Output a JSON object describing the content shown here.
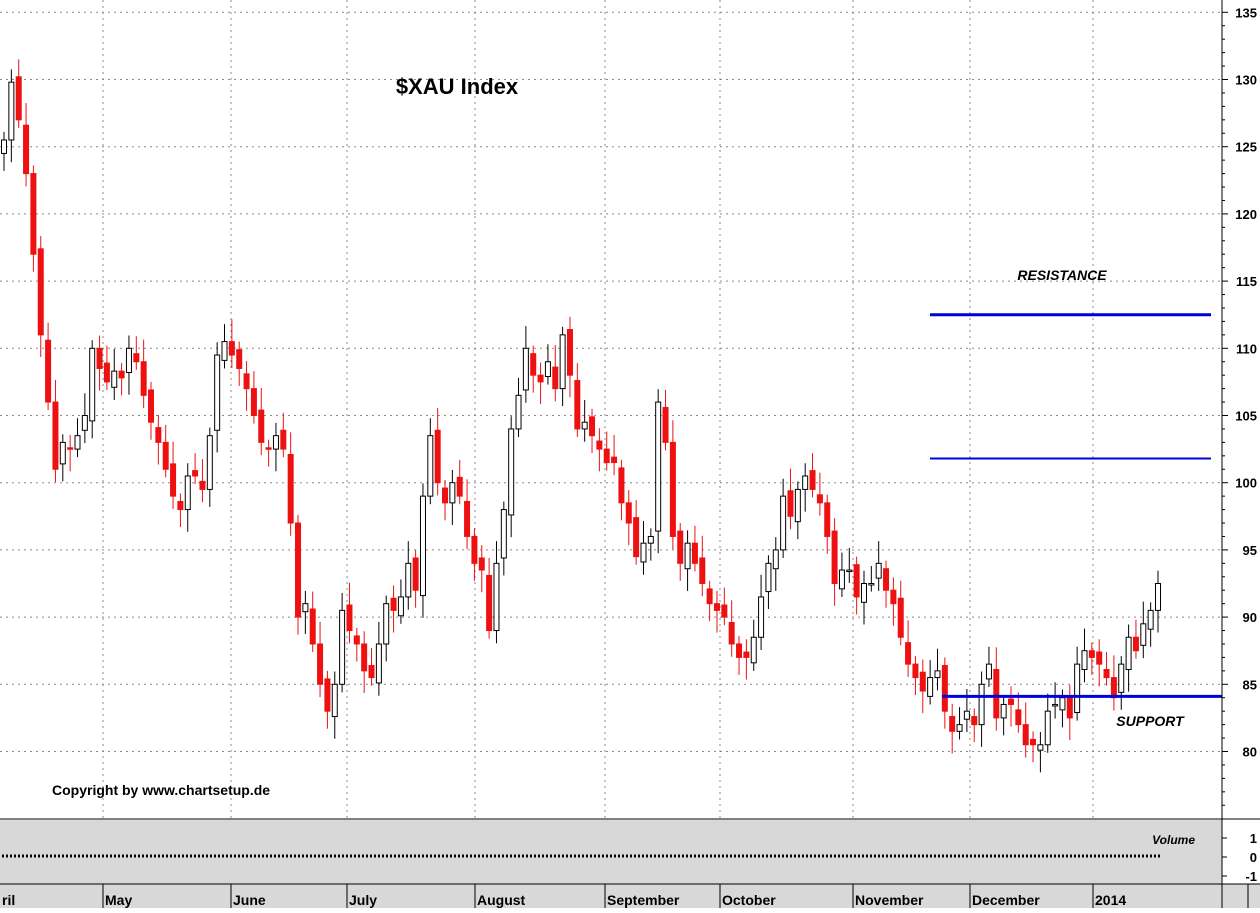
{
  "chart_data": {
    "type": "candlestick",
    "title": "$XAU Index",
    "copyright": "Copyright by www.chartsetup.de",
    "y_axis": {
      "ticks": [
        80,
        85,
        90,
        95,
        100,
        105,
        110,
        115,
        120,
        125,
        130,
        135
      ],
      "ylim": [
        75,
        135
      ],
      "position": "right"
    },
    "x_axis": {
      "labels": [
        "ril",
        "May",
        "June",
        "July",
        "August",
        "September",
        "October",
        "November",
        "December",
        "2014"
      ]
    },
    "grid": true,
    "annotations": {
      "resistance_label": "RESISTANCE",
      "support_label": "SUPPORT",
      "volume_label": "Volume"
    },
    "lines": [
      {
        "name": "resistance-upper",
        "y": 112.5,
        "color": "#0000dd"
      },
      {
        "name": "resistance-lower",
        "y": 101.8,
        "color": "#0000dd"
      },
      {
        "name": "support",
        "y": 84.1,
        "color": "#0000dd"
      }
    ],
    "volume_panel": {
      "ticks": [
        "1",
        "0",
        "-1"
      ],
      "value": 0
    },
    "colors": {
      "up": "#ffffff",
      "down": "#ee1111",
      "grid": "#888888",
      "panel": "#d8d8d8",
      "level_line": "#0000dd"
    },
    "closes": [
      125.5,
      129.8,
      127,
      123,
      117,
      111,
      106,
      101,
      103,
      102.5,
      103.5,
      105,
      110,
      108.5,
      107.5,
      108.3,
      107.8,
      110,
      109,
      106.5,
      104.5,
      103,
      101,
      99,
      98,
      100.5,
      100.5,
      99.5,
      103.5,
      109.5,
      110.5,
      109.5,
      108.5,
      107,
      105,
      103,
      102.5,
      103.5,
      102.5,
      97,
      90,
      91,
      88,
      85,
      83,
      85,
      90.5,
      89,
      88,
      86,
      85.5,
      88,
      91,
      90.5,
      91.5,
      94,
      92,
      99,
      103.5,
      100,
      98.5,
      100,
      99,
      96,
      94,
      93.5,
      89,
      94,
      98,
      104,
      106.5,
      110,
      108,
      107.5,
      109,
      107,
      111,
      108,
      104,
      104.5,
      103.5,
      102.5,
      101.5,
      101.5,
      98.5,
      97,
      94.5,
      95.5,
      96,
      106,
      103,
      96,
      94,
      95.5,
      94,
      92.5,
      91,
      90.5,
      90,
      88,
      87,
      87,
      88.5,
      91.5,
      94,
      95,
      99,
      97.5,
      99.5,
      100.5,
      99.5,
      98.5,
      96,
      92.5,
      93.5,
      93.5,
      91.5,
      92.5,
      92.5,
      94,
      92,
      91,
      88.5,
      86.5,
      85.5,
      84.5,
      85.5,
      86,
      83,
      81.5,
      82,
      83,
      82,
      85,
      86.5,
      82.5,
      83.5,
      83.5,
      82,
      80.5,
      80.5,
      80.5,
      83,
      83.5,
      84,
      82.5,
      86.5,
      87.5,
      87,
      86.5,
      85.5,
      84,
      86.5,
      88.5,
      87.5,
      89.5,
      90.5,
      92.5
    ]
  }
}
